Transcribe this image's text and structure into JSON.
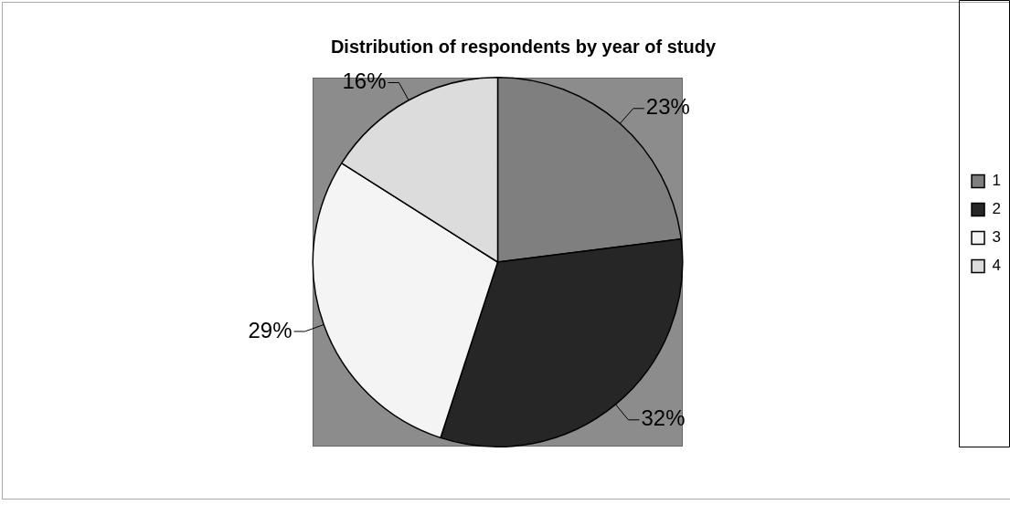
{
  "chart_data": {
    "type": "pie",
    "title": "Distribution of respondents by year of study",
    "categories": [
      "1",
      "2",
      "3",
      "4"
    ],
    "values": [
      23,
      32,
      29,
      16
    ],
    "value_labels": [
      "23%",
      "32%",
      "29%",
      "16%"
    ],
    "colors": [
      "#7f7f7f",
      "#262626",
      "#f4f4f4",
      "#dcdcdc"
    ],
    "legend": "right"
  }
}
